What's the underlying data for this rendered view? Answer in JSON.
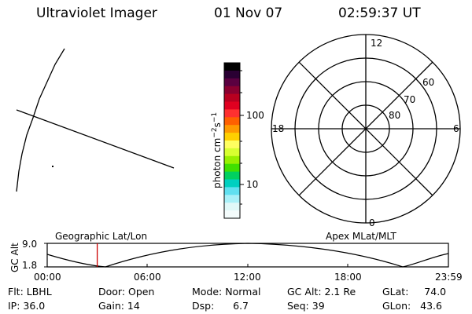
{
  "header": {
    "instrument": "Ultraviolet Imager",
    "date": "01 Nov 07",
    "time": "02:59:37 UT"
  },
  "colorbar": {
    "label": "photon cm",
    "label_exp1": "−2",
    "label_s": "s",
    "label_exp2": "−1",
    "ticks": [
      "100",
      "10"
    ],
    "colors": [
      "#000000",
      "#2a0033",
      "#5a0040",
      "#8a0030",
      "#b80020",
      "#e00020",
      "#ff3030",
      "#ff6000",
      "#ff9a00",
      "#ffd000",
      "#ffff60",
      "#d8ff30",
      "#98f000",
      "#40e000",
      "#00d060",
      "#00d0c0",
      "#60e0f0",
      "#a8f0f8",
      "#e0f8f8",
      "#f4fcfc"
    ]
  },
  "polar": {
    "mlt_labels": [
      "12",
      "18",
      "6",
      "0"
    ],
    "lat_labels": [
      "60",
      "70",
      "80"
    ]
  },
  "timeline": {
    "axis_title": "GC Alt",
    "y_ticks": [
      "9.0",
      "1.8"
    ],
    "left_label": "Geographic Lat/Lon",
    "right_label": "Apex MLat/MLT",
    "x_ticks": [
      "00:00",
      "06:00",
      "12:00",
      "18:00",
      "23:59"
    ],
    "current_fraction": 0.1247
  },
  "status": {
    "flt": "Flt: LBHL",
    "ip": "IP: 36.0",
    "door": "Door: Open",
    "gain": "Gain: 14",
    "mode": "Mode: Normal",
    "dsp": "Dsp:      6.7",
    "gc_alt": "GC Alt: 2.1 Re",
    "seq": "Seq: 39",
    "glat": "GLat:     74.0",
    "glon": "GLon:   43.6"
  },
  "colors": {
    "marker": "#cc0000",
    "line": "#000000"
  }
}
